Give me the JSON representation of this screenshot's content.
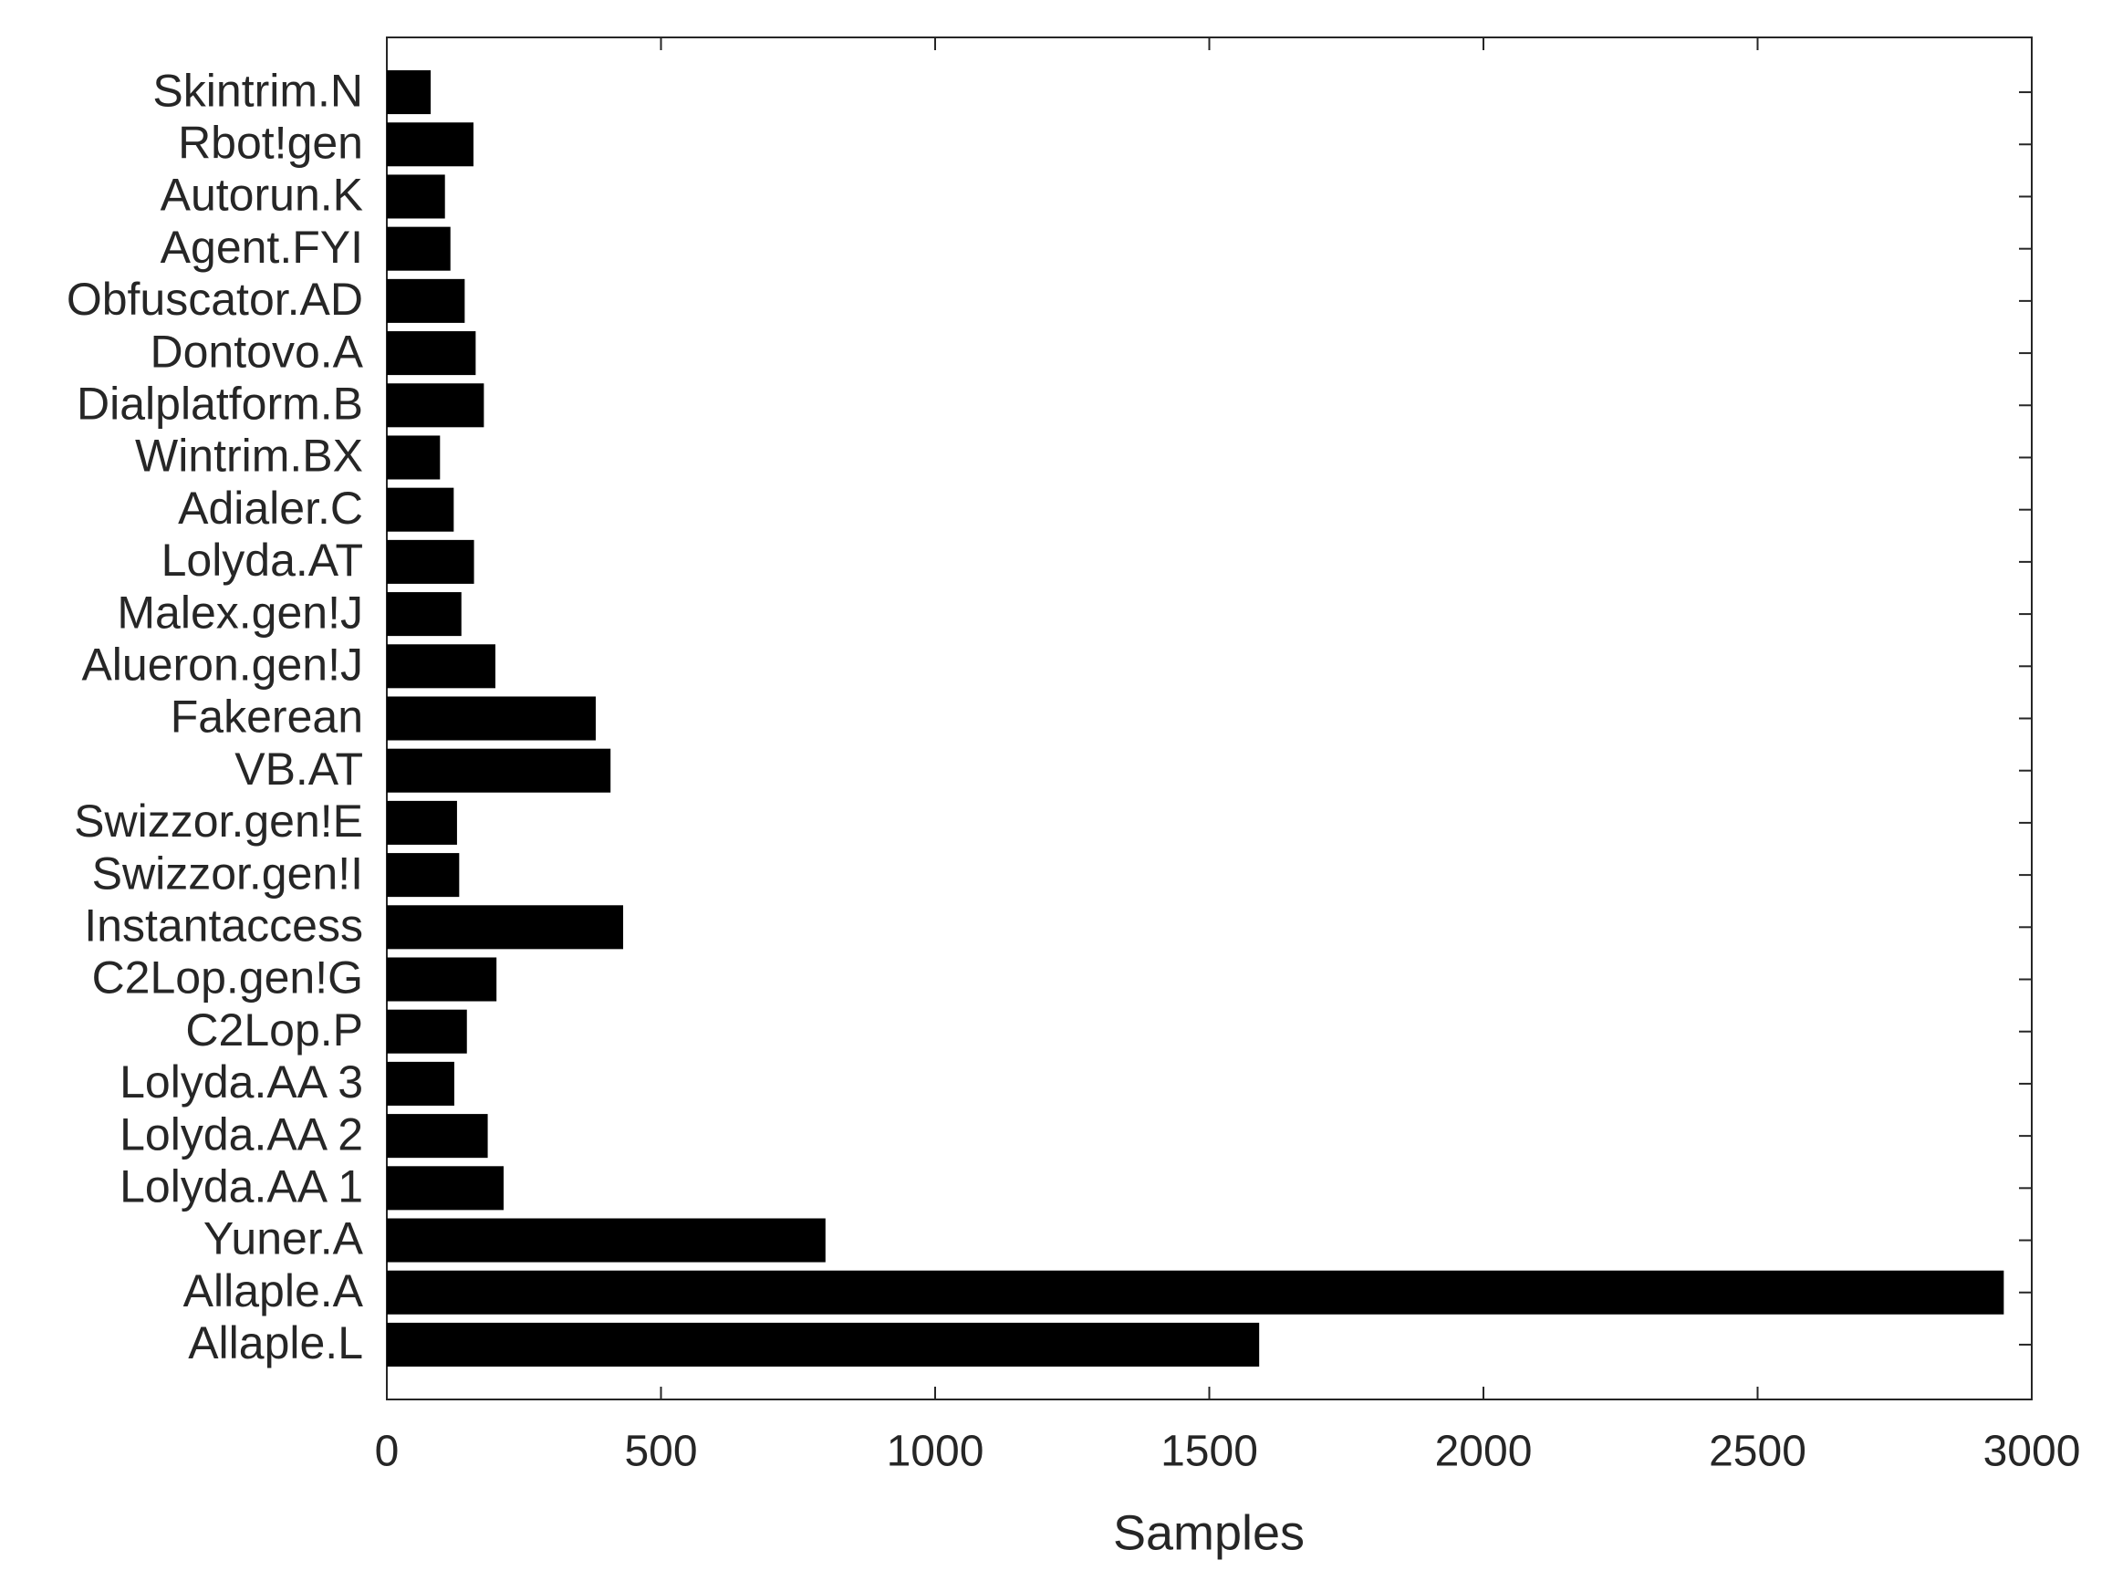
{
  "chart_data": {
    "type": "barh",
    "categories": [
      "Allaple.L",
      "Allaple.A",
      "Yuner.A",
      "Lolyda.AA 1",
      "Lolyda.AA 2",
      "Lolyda.AA 3",
      "C2Lop.P",
      "C2Lop.gen!G",
      "Instantaccess",
      "Swizzor.gen!I",
      "Swizzor.gen!E",
      "VB.AT",
      "Fakerean",
      "Alueron.gen!J",
      "Malex.gen!J",
      "Lolyda.AT",
      "Adialer.C",
      "Wintrim.BX",
      "Dialplatform.B",
      "Dontovo.A",
      "Obfuscator.AD",
      "Agent.FYI",
      "Autorun.K",
      "Rbot!gen",
      "Skintrim.N"
    ],
    "values": [
      1591,
      2949,
      800,
      213,
      184,
      123,
      146,
      200,
      431,
      132,
      128,
      408,
      381,
      198,
      136,
      159,
      122,
      97,
      177,
      162,
      142,
      116,
      106,
      158,
      80
    ],
    "color": "#000000",
    "xlabel": "Samples",
    "xlim": [
      0,
      3000
    ],
    "xticks": [
      0,
      500,
      1000,
      1500,
      2000,
      2500,
      3000
    ],
    "grid": false
  }
}
